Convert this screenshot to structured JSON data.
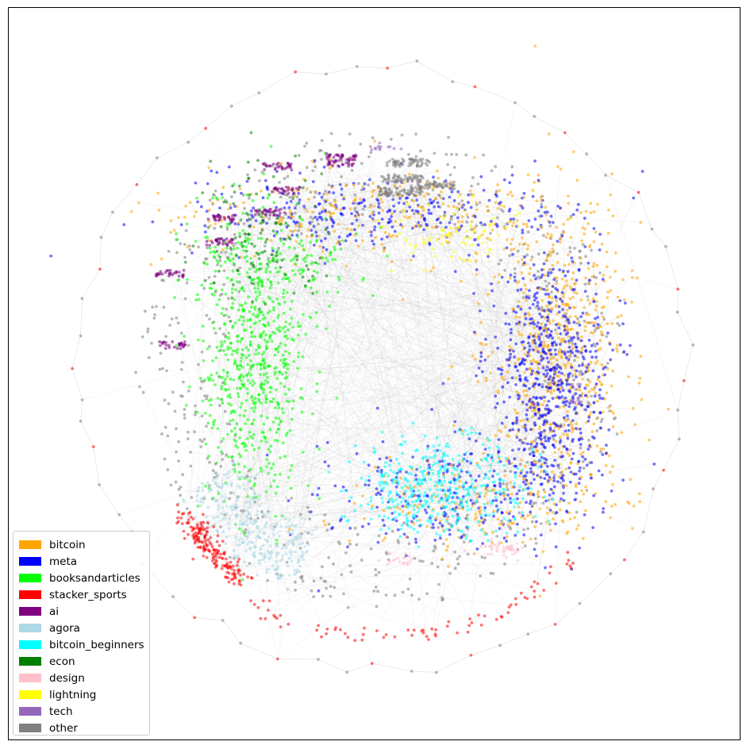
{
  "legend": {
    "items": [
      {
        "label": "bitcoin",
        "color": "#ffa500"
      },
      {
        "label": "meta",
        "color": "#0000ff"
      },
      {
        "label": "booksandarticles",
        "color": "#00ff00"
      },
      {
        "label": "stacker_sports",
        "color": "#ff0000"
      },
      {
        "label": "ai",
        "color": "#800080"
      },
      {
        "label": "agora",
        "color": "#add8e6"
      },
      {
        "label": "bitcoin_beginners",
        "color": "#00ffff"
      },
      {
        "label": "econ",
        "color": "#008000"
      },
      {
        "label": "design",
        "color": "#ffc0cb"
      },
      {
        "label": "lightning",
        "color": "#ffff00"
      },
      {
        "label": "tech",
        "color": "#9467bd"
      },
      {
        "label": "other",
        "color": "#808080"
      }
    ]
  },
  "graph": {
    "type": "network",
    "node_opacity": 0.55,
    "edge_color": "#888888"
  }
}
